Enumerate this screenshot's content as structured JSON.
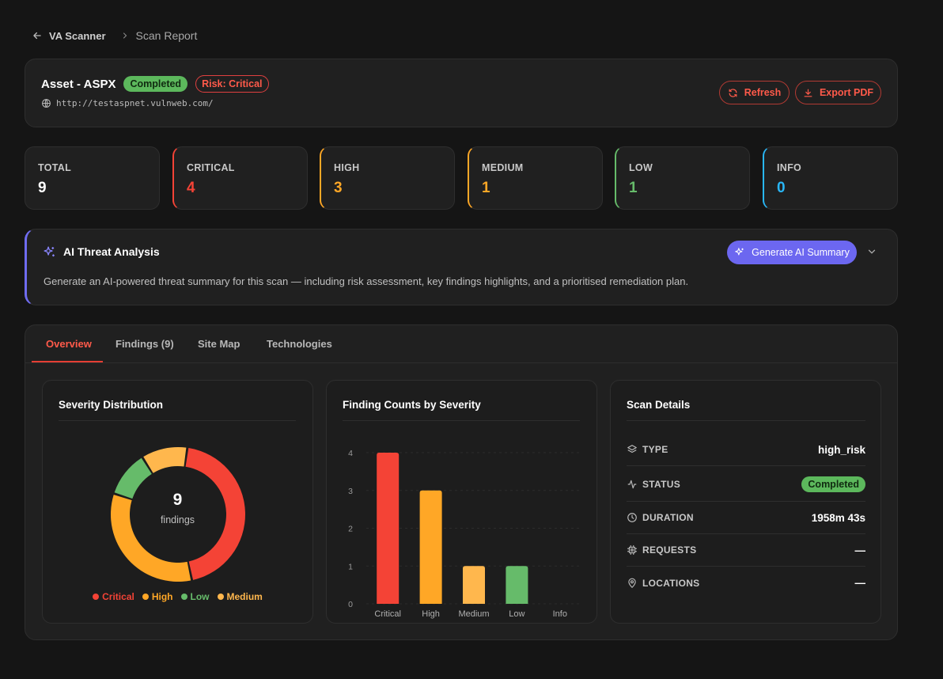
{
  "breadcrumb": {
    "root": "VA Scanner",
    "current": "Scan Report"
  },
  "header": {
    "title": "Asset - ASPX",
    "status": "Completed",
    "risk": "Risk: Critical",
    "url": "http://testaspnet.vulnweb.com/",
    "refresh_label": "Refresh",
    "export_label": "Export PDF"
  },
  "stats": [
    {
      "label": "TOTAL",
      "value": "9",
      "color": "#ffffff"
    },
    {
      "label": "CRITICAL",
      "value": "4",
      "color": "#f44336"
    },
    {
      "label": "HIGH",
      "value": "3",
      "color": "#ffa726"
    },
    {
      "label": "MEDIUM",
      "value": "1",
      "color": "#ffa726"
    },
    {
      "label": "LOW",
      "value": "1",
      "color": "#66bb6a"
    },
    {
      "label": "INFO",
      "value": "0",
      "color": "#29b6f6"
    }
  ],
  "ai": {
    "title": "AI Threat Analysis",
    "button": "Generate AI Summary",
    "description": "Generate an AI-powered threat summary for this scan — including risk assessment, key findings highlights, and a prioritised remediation plan."
  },
  "tabs": [
    "Overview",
    "Findings (9)",
    "Site Map",
    "Technologies"
  ],
  "severity_panel": {
    "title": "Severity Distribution",
    "center_value": "9",
    "center_label": "findings"
  },
  "counts_panel": {
    "title": "Finding Counts by Severity"
  },
  "details_panel": {
    "title": "Scan Details",
    "rows": [
      {
        "key": "TYPE",
        "value": "high_risk"
      },
      {
        "key": "STATUS",
        "value": "Completed"
      },
      {
        "key": "DURATION",
        "value": "1958m 43s"
      },
      {
        "key": "REQUESTS",
        "value": "—"
      },
      {
        "key": "LOCATIONS",
        "value": "—"
      }
    ]
  },
  "colors": {
    "critical": "#f44336",
    "high": "#ffa726",
    "medium": "#ffb74d",
    "low": "#66bb6a",
    "info": "#29b6f6",
    "accent": "#e53e34",
    "ai": "#6c67f0"
  },
  "chart_data": [
    {
      "type": "pie",
      "variant": "donut",
      "categories": [
        "Critical",
        "High",
        "Low",
        "Medium"
      ],
      "values": [
        4,
        3,
        1,
        1
      ],
      "colors": [
        "#f44336",
        "#ffa726",
        "#66bb6a",
        "#ffb74d"
      ],
      "legend": "bottom"
    },
    {
      "type": "bar",
      "categories": [
        "Critical",
        "High",
        "Medium",
        "Low",
        "Info"
      ],
      "values": [
        4,
        3,
        1,
        1,
        0
      ],
      "colors": [
        "#f44336",
        "#ffa726",
        "#ffb74d",
        "#66bb6a",
        "#29b6f6"
      ],
      "yticks": [
        "0",
        "1",
        "2",
        "3",
        "4"
      ],
      "ylim": [
        0,
        4
      ],
      "grid": true
    }
  ]
}
